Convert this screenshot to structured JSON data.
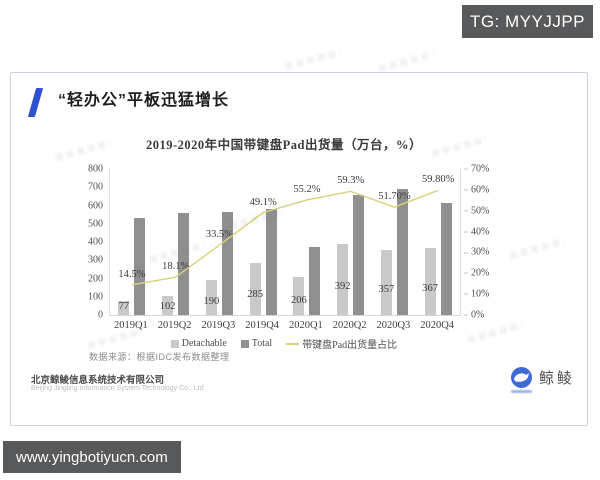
{
  "overlay": {
    "tg_badge": "TG: MYYJJPP",
    "url_badge": "www.yingbotiyucn.com"
  },
  "card": {
    "heading": "“轻办公”平板迅猛增长",
    "source_note": "数据来源：根据IDC发布数据整理",
    "footer": {
      "company_cn": "北京鲸鲮信息系统技术有限公司",
      "company_en": "Beijing Jingling Information System Technology Co., Ltd",
      "logo_text": "鲸鲮"
    }
  },
  "chart_data": {
    "type": "bar",
    "subtype": "grouped-bar-with-line",
    "title": "2019-2020年中国带键盘Pad出货量（万台，%）",
    "categories": [
      "2019Q1",
      "2019Q2",
      "2019Q3",
      "2019Q4",
      "2020Q1",
      "2020Q2",
      "2020Q3",
      "2020Q4"
    ],
    "series": [
      {
        "name": "Detachable",
        "kind": "bar",
        "color": "#c9c9c9",
        "values": [
          77,
          102,
          190,
          285,
          206,
          392,
          357,
          367
        ],
        "labels": [
          "77",
          "102",
          "190",
          "285",
          "206",
          "392",
          "357",
          "367"
        ]
      },
      {
        "name": "Total",
        "kind": "bar",
        "color": "#8f8f8f",
        "values": [
          530,
          560,
          567,
          580,
          373,
          660,
          690,
          614
        ]
      },
      {
        "name": "带键盘Pad出货量占比",
        "kind": "line",
        "color": "#ddcf7a",
        "axis": "right",
        "values": [
          14.5,
          18.1,
          33.5,
          49.1,
          55.2,
          59.3,
          51.7,
          59.8
        ],
        "labels": [
          "14.5%",
          "18.1%",
          "33.5%",
          "49.1%",
          "55.2%",
          "59.3%",
          "51.70%",
          "59.80%"
        ]
      }
    ],
    "left_axis": {
      "min": 0,
      "max": 800,
      "ticks": [
        "800",
        "700",
        "600",
        "500",
        "400",
        "300",
        "200",
        "100",
        "0"
      ]
    },
    "right_axis": {
      "min": 0,
      "max": 70,
      "ticks": [
        "70%",
        "60%",
        "50%",
        "40%",
        "30%",
        "20%",
        "10%",
        "0%"
      ]
    },
    "legend_position": "bottom",
    "grid": false
  }
}
